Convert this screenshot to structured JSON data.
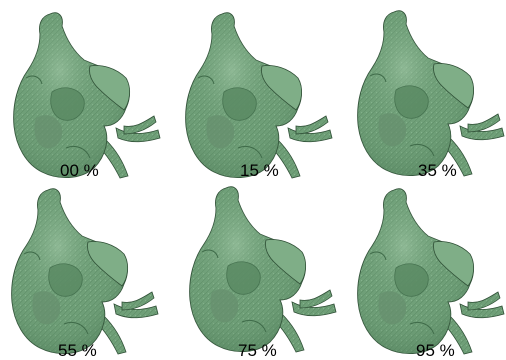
{
  "colors": {
    "background": "#ffffff",
    "mesh_fill": "#6f9f78",
    "mesh_shadow": "#3f6b49",
    "mesh_highlight": "#a9cfae",
    "mesh_outline": "#2f4f36",
    "label_color": "#000000"
  },
  "panels": [
    {
      "label": "00 %"
    },
    {
      "label": "15 %"
    },
    {
      "label": "35 %"
    },
    {
      "label": "55 %"
    },
    {
      "label": "75 %"
    },
    {
      "label": "95 %"
    }
  ]
}
